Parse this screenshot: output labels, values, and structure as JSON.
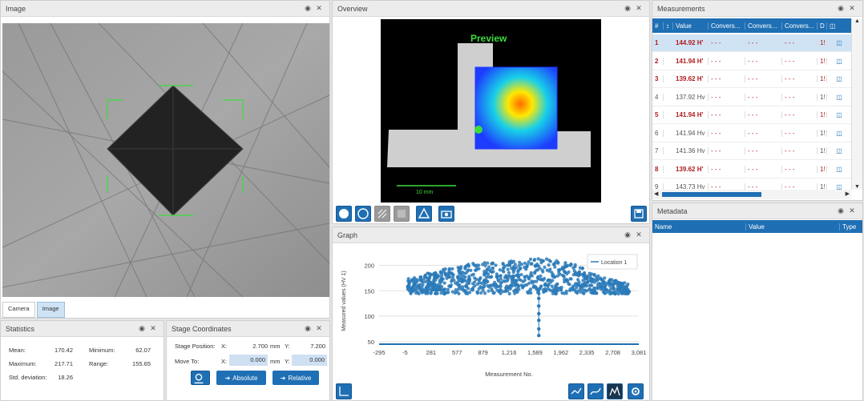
{
  "image_panel": {
    "title": "Image",
    "tabs": [
      "Camera",
      "Image"
    ]
  },
  "overview_panel": {
    "title": "Overview",
    "preview_label": "Preview",
    "scale_label": "10 mm"
  },
  "measurements_panel": {
    "title": "Measurements",
    "columns": [
      "#",
      "",
      "Value",
      "Convers...",
      "Convers...",
      "Convers...",
      "D",
      ""
    ],
    "rows": [
      {
        "n": "1",
        "value": "144.92 H'",
        "c1": "- - -",
        "c2": "- - -",
        "c3": "- - -",
        "d": "1!",
        "red": true,
        "selected": true
      },
      {
        "n": "2",
        "value": "141.94 H'",
        "c1": "- - -",
        "c2": "- - -",
        "c3": "- - -",
        "d": "1!",
        "red": true
      },
      {
        "n": "3",
        "value": "139.62 H'",
        "c1": "- - -",
        "c2": "- - -",
        "c3": "- - -",
        "d": "1!",
        "red": true
      },
      {
        "n": "4",
        "value": "137.92 Hv",
        "c1": "- - -",
        "c2": "- - -",
        "c3": "- - -",
        "d": "1!",
        "red": false
      },
      {
        "n": "5",
        "value": "141.94 H'",
        "c1": "- - -",
        "c2": "- - -",
        "c3": "- - -",
        "d": "1!",
        "red": true
      },
      {
        "n": "6",
        "value": "141.94 Hv",
        "c1": "- - -",
        "c2": "- - -",
        "c3": "- - -",
        "d": "1!",
        "red": false
      },
      {
        "n": "7",
        "value": "141.36 Hv",
        "c1": "- - -",
        "c2": "- - -",
        "c3": "- - -",
        "d": "1!",
        "red": false
      },
      {
        "n": "8",
        "value": "139.62 H'",
        "c1": "- - -",
        "c2": "- - -",
        "c3": "- - -",
        "d": "1!",
        "red": true
      },
      {
        "n": "9",
        "value": "143.73 Hv",
        "c1": "- - -",
        "c2": "- - -",
        "c3": "- - -",
        "d": "1!",
        "red": false
      }
    ]
  },
  "metadata_panel": {
    "title": "Metadata",
    "columns": [
      "Name",
      "Value",
      "Type"
    ]
  },
  "statistics_panel": {
    "title": "Statistics",
    "mean_label": "Mean:",
    "mean": "170.42",
    "minimum_label": "Minimum:",
    "minimum": "62.07",
    "maximum_label": "Maximum:",
    "maximum": "217.71",
    "range_label": "Range:",
    "range": "155.65",
    "std_label": "Std. deviation:",
    "std": "18.26"
  },
  "stage_panel": {
    "title": "Stage Coordinates",
    "position_label": "Stage Position:",
    "x_label": "X:",
    "x_value": "2.700",
    "y_label": "Y:",
    "y_value": "7.200",
    "unit": "mm",
    "move_label": "Move To:",
    "move_x": "0.000",
    "move_y": "0.000",
    "absolute": "Absolute",
    "relative": "Relative"
  },
  "graph_panel": {
    "title": "Graph"
  },
  "chart_data": {
    "type": "scatter",
    "xlabel": "Measurement No.",
    "ylabel": "Measured values (HV 1)",
    "xticks": [
      "-295",
      "-5",
      "281",
      "577",
      "879",
      "1,216",
      "1,589",
      "1,962",
      "2,335",
      "2,708",
      "3,081"
    ],
    "yticks": [
      50,
      100,
      150,
      200
    ],
    "ylim": [
      45,
      215
    ],
    "legend": "Location 1",
    "legend_position": "top-right",
    "series": [
      {
        "name": "Location 1",
        "color": "#2a7ab8"
      }
    ]
  }
}
